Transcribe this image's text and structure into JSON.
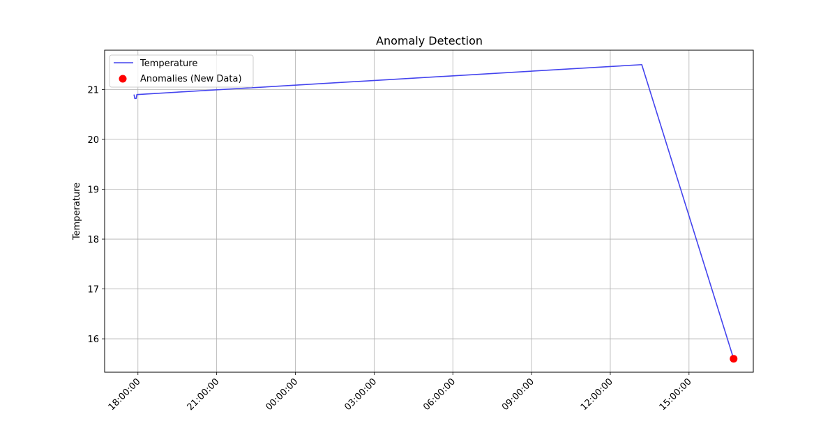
{
  "chart_data": {
    "type": "line",
    "title": "Anomaly Detection",
    "xlabel": "",
    "ylabel": "Temperature",
    "x_ticks": [
      "18:00:00",
      "21:00:00",
      "00:00:00",
      "03:00:00",
      "06:00:00",
      "09:00:00",
      "12:00:00",
      "15:00:00"
    ],
    "x_tick_hours": [
      18,
      21,
      24,
      27,
      30,
      33,
      36,
      39
    ],
    "x_range_hours": [
      16.73,
      41.45
    ],
    "ylim": [
      15.33,
      21.79
    ],
    "y_ticks": [
      16,
      17,
      18,
      19,
      20,
      21
    ],
    "grid": true,
    "legend_position": "top-left",
    "series": [
      {
        "name": "Temperature",
        "type": "line",
        "color": "#4444ee",
        "x_hours": [
          17.85,
          17.88,
          17.93,
          17.96,
          37.2,
          40.7
        ],
        "x": [
          "17:51",
          "17:53",
          "17:56",
          "17:58",
          "13:12",
          "16:42"
        ],
        "y": [
          20.9,
          20.82,
          20.82,
          20.9,
          21.5,
          15.6
        ]
      },
      {
        "name": "Anomalies (New Data)",
        "type": "scatter",
        "color": "#ff0000",
        "x_hours": [
          40.7
        ],
        "x": [
          "16:42"
        ],
        "y": [
          15.6
        ]
      }
    ]
  }
}
